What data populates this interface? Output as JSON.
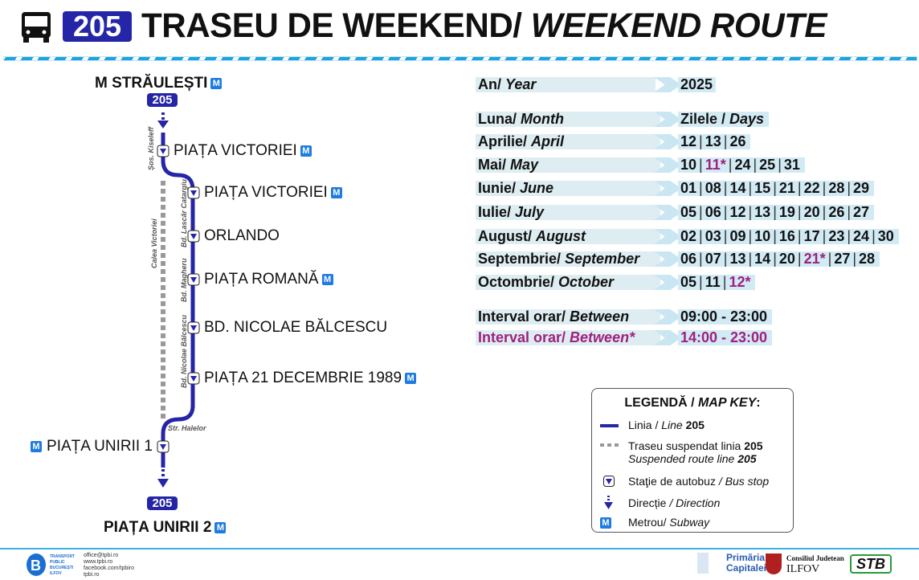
{
  "header": {
    "icon": "bus-icon",
    "line_number": "205",
    "title_ro": "TRASEU DE WEEKEND/ ",
    "title_en": "WEEKEND ROUTE"
  },
  "route": {
    "start": "M STRĂULEȘTI",
    "end": "PIAȚA UNIRII 2",
    "line_badge": "205",
    "stops": [
      {
        "name": "PIAȚA VICTORIEI",
        "metro": true
      },
      {
        "name": "PIAȚA VICTORIEI",
        "metro": true
      },
      {
        "name": "ORLANDO",
        "metro": false
      },
      {
        "name": "PIAȚA ROMANĂ",
        "metro": true
      },
      {
        "name": "BD. NICOLAE BĂLCESCU",
        "metro": false
      },
      {
        "name": "PIAȚA 21 DECEMBRIE 1989",
        "metro": true
      },
      {
        "name": "PIAȚA UNIRII 1",
        "metro": true
      }
    ],
    "streets": [
      "Șos. Kiseleff",
      "Calea Victoriei",
      "Bd. Lascăr Catargiu",
      "Bd. Magheru",
      "Bd. Nicolae Bălcescu",
      "Str. Halelor"
    ],
    "metro_label": "M"
  },
  "schedule": {
    "year_label_ro": "An/ ",
    "year_label_en": "Year",
    "year": "2025",
    "month_header_ro": "Luna/ ",
    "month_header_en": "Month",
    "days_header_ro": "Zilele / ",
    "days_header_en": "Days",
    "months": [
      {
        "ro": "Aprilie/ ",
        "en": "April",
        "days": [
          {
            "d": "12"
          },
          {
            "d": "13"
          },
          {
            "d": "26"
          }
        ]
      },
      {
        "ro": "Mai/ ",
        "en": "May",
        "days": [
          {
            "d": "10"
          },
          {
            "d": "11*",
            "special": true
          },
          {
            "d": "24"
          },
          {
            "d": "25"
          },
          {
            "d": "31"
          }
        ]
      },
      {
        "ro": "Iunie/ ",
        "en": "June",
        "days": [
          {
            "d": "01"
          },
          {
            "d": "08"
          },
          {
            "d": "14"
          },
          {
            "d": "15"
          },
          {
            "d": "21"
          },
          {
            "d": "22"
          },
          {
            "d": "28"
          },
          {
            "d": "29"
          }
        ]
      },
      {
        "ro": "Iulie/ ",
        "en": "July",
        "days": [
          {
            "d": "05"
          },
          {
            "d": "06"
          },
          {
            "d": "12"
          },
          {
            "d": "13"
          },
          {
            "d": "19"
          },
          {
            "d": "20"
          },
          {
            "d": "26"
          },
          {
            "d": "27"
          }
        ]
      },
      {
        "ro": "August/ ",
        "en": "August",
        "days": [
          {
            "d": "02"
          },
          {
            "d": "03"
          },
          {
            "d": "09"
          },
          {
            "d": "10"
          },
          {
            "d": "16"
          },
          {
            "d": "17"
          },
          {
            "d": "23"
          },
          {
            "d": "24"
          },
          {
            "d": "30"
          }
        ]
      },
      {
        "ro": "Septembrie/ ",
        "en": "September",
        "days": [
          {
            "d": "06"
          },
          {
            "d": "07"
          },
          {
            "d": "13"
          },
          {
            "d": "14"
          },
          {
            "d": "20"
          },
          {
            "d": "21*",
            "special": true
          },
          {
            "d": "27"
          },
          {
            "d": "28"
          }
        ]
      },
      {
        "ro": "Octombrie/ ",
        "en": "October",
        "days": [
          {
            "d": "05"
          },
          {
            "d": "11"
          },
          {
            "d": "12*",
            "special": true
          }
        ]
      }
    ],
    "intervals": [
      {
        "ro": "Interval orar/ ",
        "en": "Between",
        "time": "09:00 - 23:00",
        "special": false
      },
      {
        "ro": "Interval orar/ ",
        "en": "Between*",
        "time": "14:00 - 23:00",
        "special": true
      }
    ],
    "special_color": "#a0207e"
  },
  "legend": {
    "title_ro": "LEGENDĂ / ",
    "title_en": "MAP KEY",
    "title_colon": ":",
    "line_ro": "Linia / ",
    "line_en": "Line ",
    "line_no": "205",
    "susp_ro": "Traseu suspendat linia ",
    "susp_no": "205",
    "susp_en": "Suspended route line ",
    "susp_en_no": "205",
    "stop_ro": "Staţie de autobuz ",
    "stop_en": "/ Bus stop",
    "dir_ro": "Direcție ",
    "dir_en": "/ Direction",
    "metro_ro": "Metrou/ ",
    "metro_en": "Subway"
  },
  "footer": {
    "tpbi_text": [
      "TRANSPORT",
      "PUBLIC",
      "BUCUREȘTI",
      "ILFOV"
    ],
    "contacts": [
      "office@tpbi.ro",
      "www.tpbi.ro",
      "facebook.com/tpbiro",
      "tpbi.ro"
    ],
    "primaria": [
      "Primăria",
      "Capitalei"
    ],
    "cj": [
      "Consiliul Judetean",
      "ILFOV"
    ],
    "stb": "STB"
  },
  "colors": {
    "line": "#2525a8",
    "accent": "#1ea3e1",
    "metro": "#1e7be0",
    "suspended": "#999999"
  }
}
